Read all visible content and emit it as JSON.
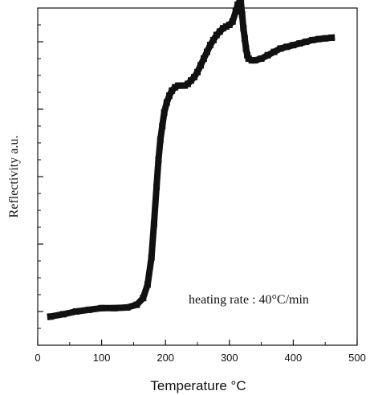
{
  "chart_data": {
    "type": "line",
    "xlabel": "Temperature °C",
    "ylabel": "Reflectivity a.u.",
    "xlim": [
      0,
      500
    ],
    "ylim": [
      0,
      10
    ],
    "x_ticks": [
      0,
      100,
      200,
      300,
      400,
      500
    ],
    "y_tick_labels": false,
    "annotation": "heating rate : 40°C/min",
    "series": [
      {
        "x": [
          20,
          40,
          60,
          80,
          100,
          120,
          140,
          155,
          165,
          172,
          178,
          182,
          186,
          189,
          192,
          195,
          198,
          202,
          206,
          210,
          215,
          220,
          225,
          230,
          235,
          240,
          245,
          250,
          255,
          260,
          265,
          270,
          275,
          280,
          285,
          290,
          295,
          300,
          305,
          310,
          313,
          316,
          318,
          320,
          322,
          324,
          326,
          328,
          330,
          335,
          340,
          350,
          360,
          370,
          380,
          390,
          400,
          410,
          420,
          430,
          440,
          450,
          460
        ],
        "y": [
          0.85,
          0.92,
          1.0,
          1.05,
          1.1,
          1.1,
          1.12,
          1.2,
          1.4,
          1.8,
          2.6,
          3.6,
          4.7,
          5.5,
          6.1,
          6.5,
          6.9,
          7.2,
          7.4,
          7.55,
          7.65,
          7.7,
          7.7,
          7.7,
          7.75,
          7.85,
          7.95,
          8.1,
          8.3,
          8.5,
          8.7,
          8.9,
          9.05,
          9.2,
          9.3,
          9.4,
          9.45,
          9.5,
          9.6,
          9.9,
          10.1,
          10.2,
          10.15,
          9.8,
          9.4,
          9.1,
          8.8,
          8.6,
          8.5,
          8.45,
          8.45,
          8.5,
          8.6,
          8.7,
          8.8,
          8.85,
          8.9,
          8.95,
          9.0,
          9.05,
          9.08,
          9.1,
          9.12
        ]
      }
    ]
  }
}
